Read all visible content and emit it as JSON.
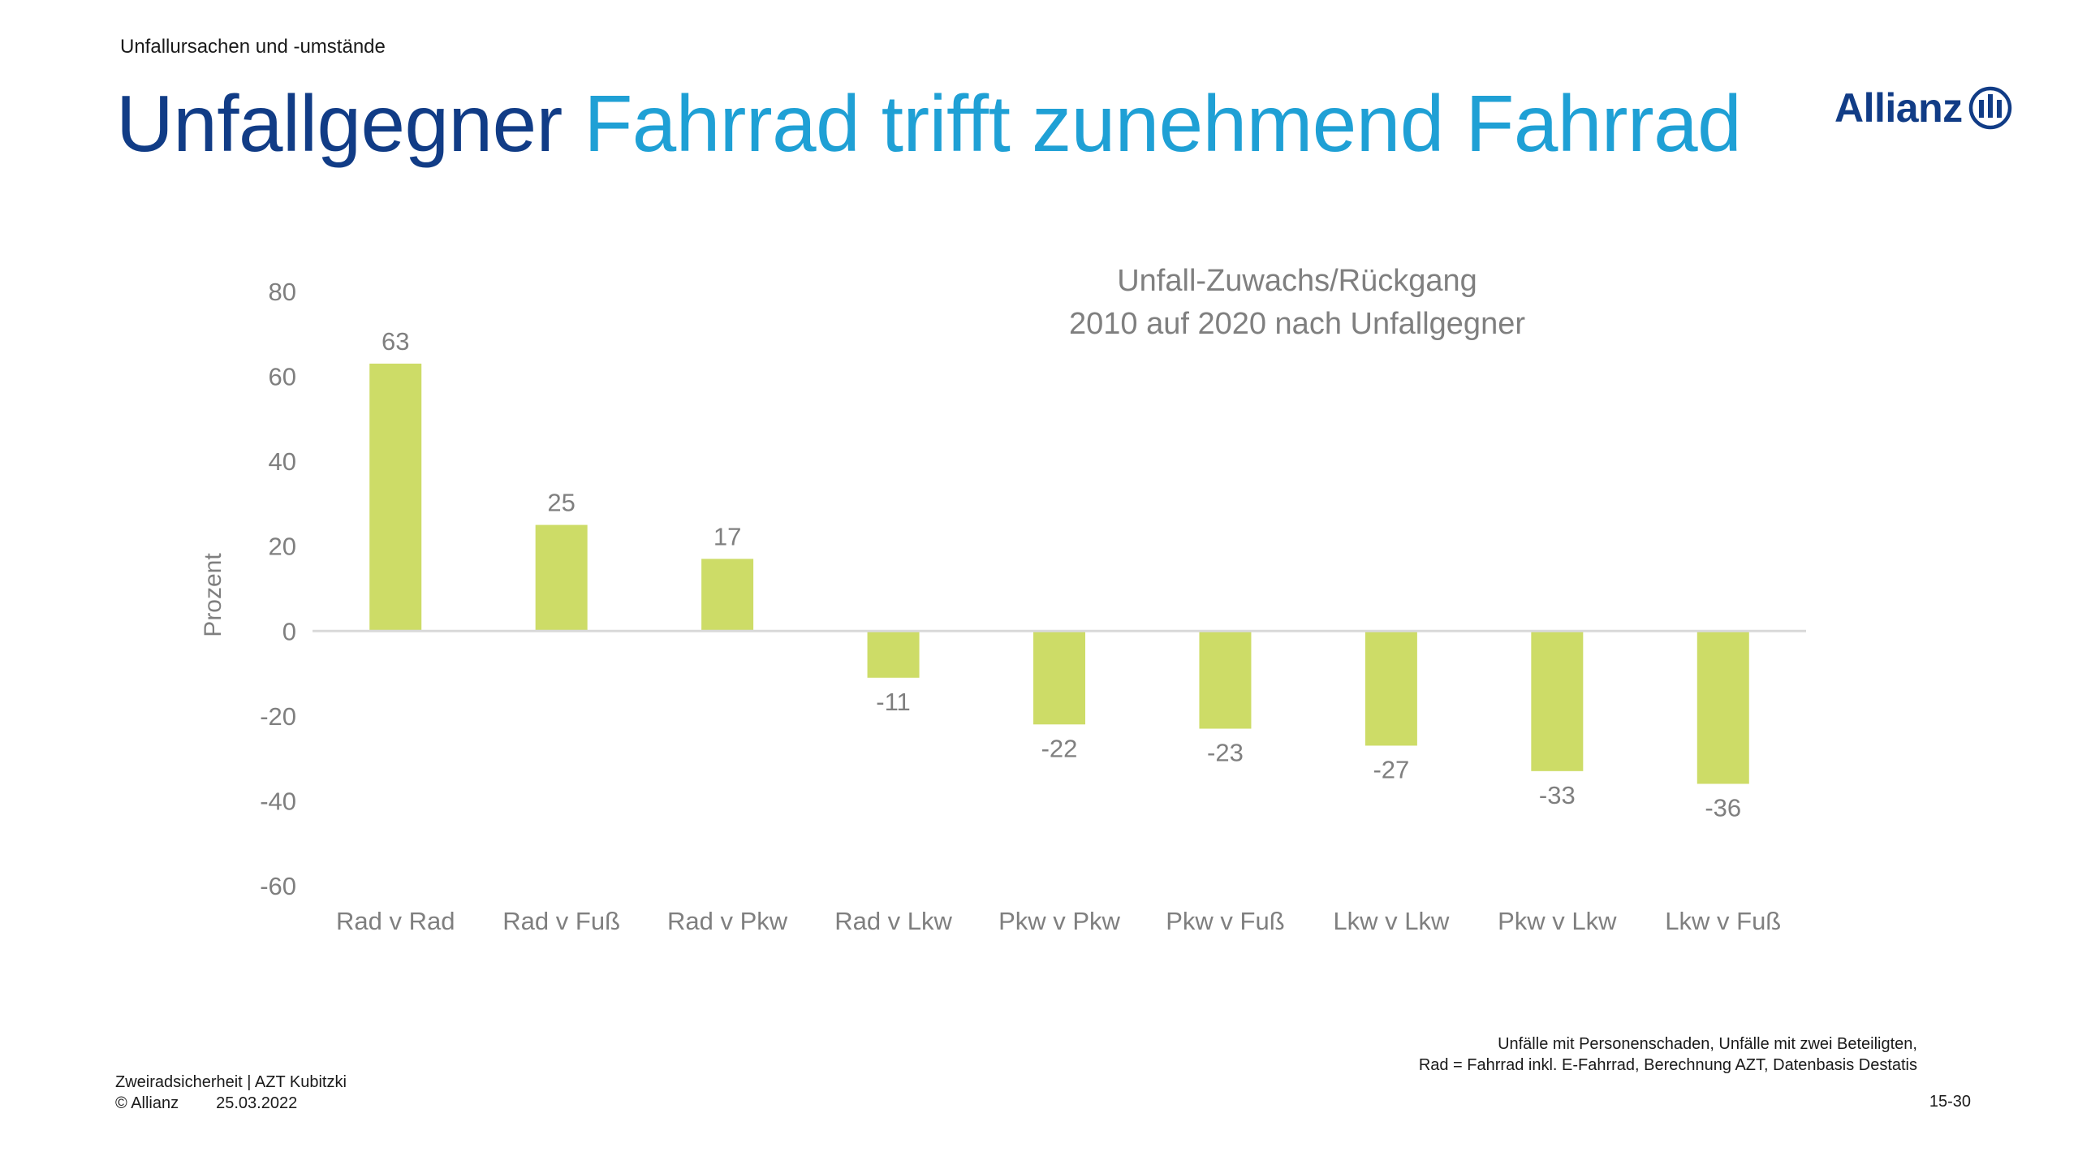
{
  "slide": {
    "section_label": "Unfallursachen und -umstände",
    "headline_dark": "Unfallgegner",
    "headline_light": "Fahrrad trifft zunehmend Fahrrad",
    "logo_text": "Allianz",
    "logo_icon": "allianz-eagle-icon"
  },
  "chart_data": {
    "type": "bar",
    "title": "Unfall-Zuwachs/Rückgang",
    "subtitle": "2010 auf 2020 nach Unfallgegner",
    "xlabel": "",
    "ylabel": "Prozent",
    "categories": [
      "Rad v Rad",
      "Rad v Fuß",
      "Rad v Pkw",
      "Rad v Lkw",
      "Pkw v Pkw",
      "Pkw v Fuß",
      "Lkw v Lkw",
      "Pkw v Lkw",
      "Lkw v Fuß"
    ],
    "values": [
      63,
      25,
      17,
      -11,
      -22,
      -23,
      -27,
      -33,
      -36
    ],
    "data_labels": [
      "63",
      "25",
      "17",
      "-11",
      "-22",
      "-23",
      "-27",
      "-33",
      "-36"
    ],
    "ylim": [
      -60,
      80
    ],
    "yticks": [
      80,
      60,
      40,
      20,
      0,
      -20,
      -40,
      -60
    ],
    "grid": false,
    "bar_color": "#cddc67",
    "axis_color": "#d9d9d9",
    "text_color": "#7f7f7f"
  },
  "footnote": {
    "line1": "Unfälle mit Personenschaden, Unfälle mit zwei Beteiligten,",
    "line2": "Rad = Fahrrad inkl. E-Fahrrad, Berechnung AZT, Datenbasis Destatis"
  },
  "footer": {
    "line1": "Zweiradsicherheit | AZT Kubitzki",
    "copyright": "© Allianz",
    "date": "25.03.2022",
    "page_number": "15-30"
  }
}
